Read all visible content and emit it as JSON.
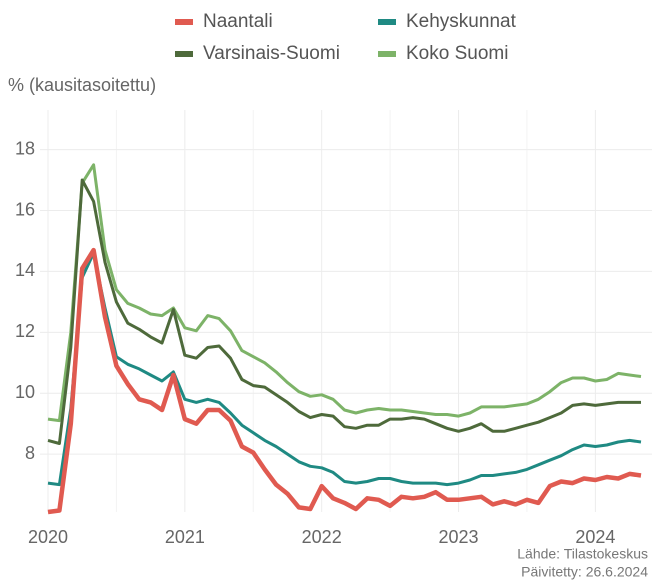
{
  "chart_data": {
    "type": "line",
    "y_label": "% (kausitasoitettu)",
    "source": [
      "Lähde: Tilastokeskus",
      "Päivitetty: 26.6.2024"
    ],
    "categories": [
      "2020",
      null,
      null,
      null,
      null,
      null,
      null,
      null,
      null,
      null,
      null,
      null,
      "2021",
      null,
      null,
      null,
      null,
      null,
      null,
      null,
      null,
      null,
      null,
      null,
      "2022",
      null,
      null,
      null,
      null,
      null,
      null,
      null,
      null,
      null,
      null,
      null,
      "2023",
      null,
      null,
      null,
      null,
      null,
      null,
      null,
      null,
      null,
      null,
      null,
      "2024",
      null,
      null,
      null,
      null
    ],
    "ylim": [
      6.1,
      19.3
    ],
    "yticks": [
      8,
      10,
      12,
      14,
      16,
      18
    ],
    "grid": true,
    "series": [
      {
        "name": "Naantali",
        "color": "#e05a50",
        "values": [
          6.1,
          6.15,
          9.0,
          14.1,
          14.7,
          12.5,
          10.9,
          10.3,
          9.8,
          9.7,
          9.45,
          10.6,
          9.15,
          9.0,
          9.45,
          9.45,
          9.1,
          8.25,
          8.05,
          7.5,
          7.0,
          6.7,
          6.25,
          6.2,
          6.95,
          6.55,
          6.4,
          6.2,
          6.55,
          6.5,
          6.3,
          6.6,
          6.55,
          6.6,
          6.75,
          6.5,
          6.5,
          6.55,
          6.6,
          6.35,
          6.45,
          6.35,
          6.5,
          6.4,
          6.95,
          7.1,
          7.05,
          7.2,
          7.15,
          7.25,
          7.2,
          7.35,
          7.3
        ]
      },
      {
        "name": "Kehyskunnat",
        "color": "#1f8a83",
        "values": [
          7.05,
          7.0,
          9.5,
          13.8,
          14.6,
          12.8,
          11.2,
          10.95,
          10.8,
          10.6,
          10.4,
          10.7,
          9.8,
          9.7,
          9.8,
          9.7,
          9.35,
          8.95,
          8.7,
          8.45,
          8.25,
          8.0,
          7.75,
          7.6,
          7.55,
          7.4,
          7.1,
          7.05,
          7.1,
          7.2,
          7.2,
          7.1,
          7.05,
          7.05,
          7.05,
          7.0,
          7.05,
          7.15,
          7.3,
          7.3,
          7.35,
          7.4,
          7.5,
          7.65,
          7.8,
          7.95,
          8.15,
          8.3,
          8.25,
          8.3,
          8.4,
          8.45,
          8.4
        ]
      },
      {
        "name": "Varsinais-Suomi",
        "color": "#4e6a3b",
        "values": [
          8.45,
          8.35,
          11.5,
          17.0,
          16.3,
          14.3,
          13.0,
          12.3,
          12.1,
          11.85,
          11.65,
          12.75,
          11.25,
          11.15,
          11.5,
          11.55,
          11.15,
          10.45,
          10.25,
          10.2,
          9.95,
          9.7,
          9.4,
          9.2,
          9.3,
          9.25,
          8.9,
          8.85,
          8.95,
          8.95,
          9.15,
          9.15,
          9.2,
          9.15,
          9.0,
          8.85,
          8.75,
          8.85,
          9.0,
          8.75,
          8.75,
          8.85,
          8.95,
          9.05,
          9.2,
          9.35,
          9.6,
          9.65,
          9.6,
          9.65,
          9.7,
          9.7,
          9.7
        ]
      },
      {
        "name": "Koko Suomi",
        "color": "#7db368",
        "values": [
          9.15,
          9.1,
          12.0,
          16.9,
          17.5,
          14.7,
          13.4,
          12.95,
          12.8,
          12.6,
          12.55,
          12.8,
          12.15,
          12.05,
          12.55,
          12.45,
          12.05,
          11.4,
          11.2,
          11.0,
          10.7,
          10.35,
          10.05,
          9.9,
          9.95,
          9.8,
          9.45,
          9.35,
          9.45,
          9.5,
          9.45,
          9.45,
          9.4,
          9.35,
          9.3,
          9.3,
          9.25,
          9.35,
          9.55,
          9.55,
          9.55,
          9.6,
          9.65,
          9.8,
          10.05,
          10.35,
          10.5,
          10.5,
          10.4,
          10.45,
          10.65,
          10.6,
          10.55
        ]
      }
    ]
  }
}
